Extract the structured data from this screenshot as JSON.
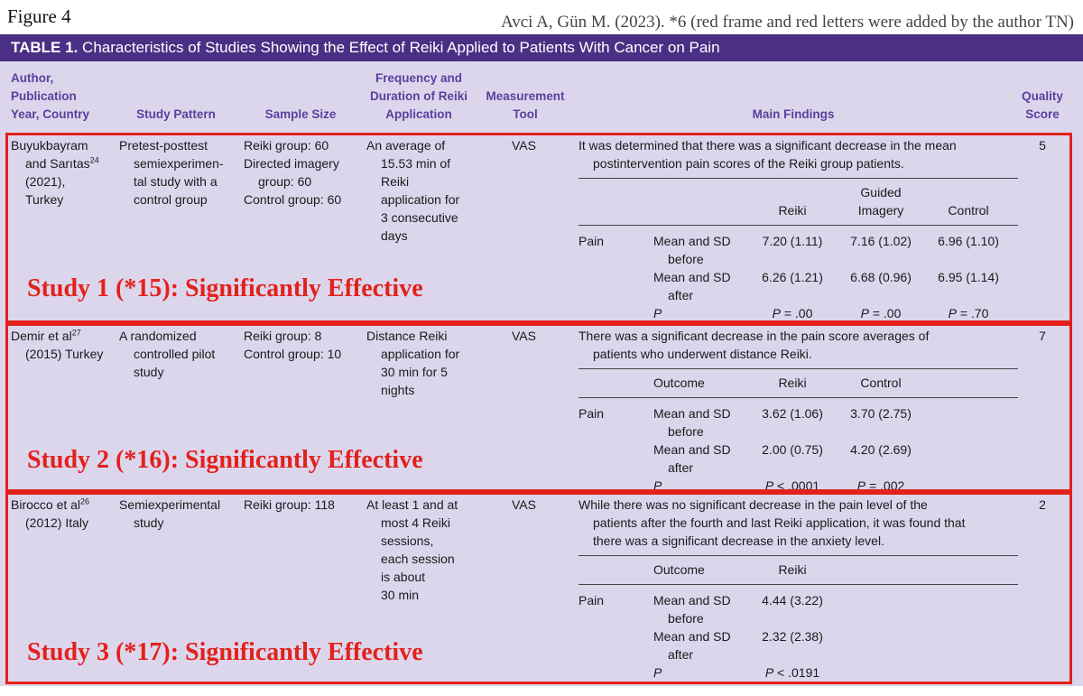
{
  "figure_label": "Figure 4",
  "citation": "Avci A, Gün M. (2023). *6 (red frame and red letters were added by the author TN)",
  "table": {
    "label": "TABLE 1.",
    "title": "Characteristics of Studies Showing the Effect of Reiki Applied to Patients With Cancer on Pain",
    "columns": [
      [
        "Author,",
        "Publication",
        "Year, Country"
      ],
      [
        "Study Pattern"
      ],
      [
        "Sample Size"
      ],
      [
        "Frequency and",
        "Duration of Reiki",
        "Application"
      ],
      [
        "Measurement",
        "Tool"
      ],
      [
        "Main Findings"
      ],
      [
        "Quality",
        "Score"
      ]
    ],
    "studies": [
      {
        "author": {
          "lines": [
            "Buyukbayram",
            "and Sarıtas"
          ],
          "ref": "24",
          "rest": [
            "(2021),",
            "Turkey"
          ]
        },
        "pattern": [
          "Pretest-posttest",
          "semiexperimen-",
          "tal study with a",
          "control group"
        ],
        "sample": [
          [
            "Reiki group: 60"
          ],
          [
            "Directed imagery",
            "group: 60"
          ],
          [
            "Control group: 60"
          ]
        ],
        "frequency": [
          "An average of",
          "15.53 min of",
          "Reiki",
          "application for",
          "3 consecutive",
          "days"
        ],
        "tool": "VAS",
        "findings": [
          "It was determined that there was a significant decrease in the mean",
          "postintervention pain scores of the Reiki group patients."
        ],
        "results": {
          "header": [
            "Reiki",
            "Guided Imagery",
            "Control"
          ],
          "rows": [
            {
              "outcome": "Pain",
              "measure": "Mean and SD before",
              "values": [
                "7.20 (1.11)",
                "7.16 (1.02)",
                "6.96 (1.10)"
              ]
            },
            {
              "measure": "Mean and SD after",
              "values": [
                "6.26 (1.21)",
                "6.68 (0.96)",
                "6.95 (1.14)"
              ]
            },
            {
              "measure": "P",
              "values": [
                "P = .00",
                "P = .00",
                "P = .70"
              ]
            }
          ]
        },
        "score": 5,
        "annotation": "Study 1 (*15): Significantly Effective"
      },
      {
        "author": {
          "lines": [
            "Demir et al"
          ],
          "ref": "27",
          "rest": [
            "(2015) Turkey"
          ]
        },
        "pattern": [
          "A randomized",
          "controlled pilot",
          "study"
        ],
        "sample": [
          [
            "Reiki group: 8"
          ],
          [
            "Control group: 10"
          ]
        ],
        "frequency": [
          "Distance Reiki",
          "application for",
          "30 min for 5",
          "nights"
        ],
        "tool": "VAS",
        "findings": [
          "There was a significant decrease in the pain score averages of",
          "patients who underwent distance Reiki."
        ],
        "results": {
          "header": [
            "Outcome",
            "Reiki",
            "Control"
          ],
          "rows": [
            {
              "outcome": "Pain",
              "measure": "Mean and SD before",
              "values": [
                "3.62 (1.06)",
                "3.70 (2.75)"
              ]
            },
            {
              "measure": "Mean and SD after",
              "values": [
                "2.00 (0.75)",
                "4.20 (2.69)"
              ]
            },
            {
              "measure": "P",
              "values": [
                "P < .0001",
                "P = .002"
              ]
            }
          ]
        },
        "score": 7,
        "annotation": "Study 2 (*16): Significantly Effective"
      },
      {
        "author": {
          "lines": [
            "Birocco et al"
          ],
          "ref": "26",
          "rest": [
            "(2012) Italy"
          ]
        },
        "pattern": [
          "Semiexperimental",
          "study"
        ],
        "sample": [
          [
            "Reiki group: 118"
          ]
        ],
        "frequency": [
          "At least 1 and at",
          "most 4 Reiki",
          "sessions,",
          "each session",
          "is about",
          "30 min"
        ],
        "tool": "VAS",
        "findings": [
          "While there was no significant decrease in the pain level of the",
          "patients after the fourth and last Reiki application, it was found that",
          "there was a significant decrease in the anxiety level."
        ],
        "results": {
          "header": [
            "Outcome",
            "Reiki"
          ],
          "rows": [
            {
              "outcome": "Pain",
              "measure": "Mean and SD before",
              "values": [
                "4.44 (3.22)"
              ]
            },
            {
              "measure": "Mean and SD after",
              "values": [
                "2.32 (2.38)"
              ]
            },
            {
              "measure": "P",
              "values": [
                "P < .0191"
              ]
            }
          ]
        },
        "score": 2,
        "annotation": "Study 3 (*17): Significantly Effective"
      }
    ]
  }
}
